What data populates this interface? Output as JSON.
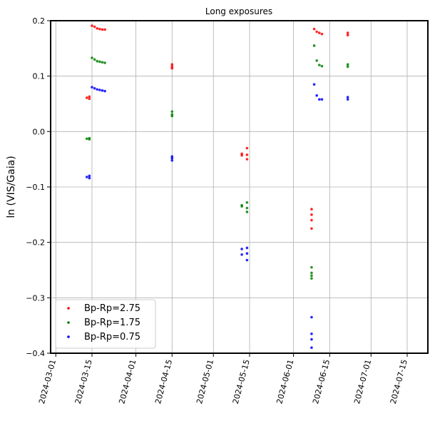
{
  "chart_data": {
    "type": "scatter",
    "title": "Long exposures",
    "xlabel": "",
    "ylabel": "ln (VIS/Gaia)",
    "x_ticks": [
      "2024-03-01",
      "2024-03-15",
      "2024-04-01",
      "2024-04-15",
      "2024-05-01",
      "2024-05-15",
      "2024-06-01",
      "2024-06-15",
      "2024-07-01",
      "2024-07-15"
    ],
    "xlim": [
      "2024-02-28",
      "2024-07-23"
    ],
    "y_ticks": [
      "0.2",
      "0.1",
      "0.0",
      "−0.1",
      "−0.2",
      "−0.3",
      "−0.4"
    ],
    "ylim": [
      -0.4,
      0.2
    ],
    "grid": true,
    "legend_position": "lower-left",
    "series": [
      {
        "name": "Bp-Rp=2.75",
        "color": "#ff0000",
        "points": [
          {
            "x": "2024-03-13",
            "y": 0.061
          },
          {
            "x": "2024-03-14",
            "y": 0.059
          },
          {
            "x": "2024-03-14",
            "y": 0.063
          },
          {
            "x": "2024-03-15",
            "y": 0.191
          },
          {
            "x": "2024-03-16",
            "y": 0.189
          },
          {
            "x": "2024-03-17",
            "y": 0.186
          },
          {
            "x": "2024-03-18",
            "y": 0.185
          },
          {
            "x": "2024-03-19",
            "y": 0.184
          },
          {
            "x": "2024-03-20",
            "y": 0.184
          },
          {
            "x": "2024-04-15",
            "y": 0.117
          },
          {
            "x": "2024-04-15",
            "y": 0.114
          },
          {
            "x": "2024-04-15",
            "y": 0.121
          },
          {
            "x": "2024-05-12",
            "y": -0.04
          },
          {
            "x": "2024-05-12",
            "y": -0.043
          },
          {
            "x": "2024-05-14",
            "y": -0.03
          },
          {
            "x": "2024-05-14",
            "y": -0.042
          },
          {
            "x": "2024-05-14",
            "y": -0.05
          },
          {
            "x": "2024-06-08",
            "y": -0.14
          },
          {
            "x": "2024-06-08",
            "y": -0.15
          },
          {
            "x": "2024-06-08",
            "y": -0.16
          },
          {
            "x": "2024-06-08",
            "y": -0.175
          },
          {
            "x": "2024-06-09",
            "y": 0.185
          },
          {
            "x": "2024-06-10",
            "y": 0.18
          },
          {
            "x": "2024-06-11",
            "y": 0.178
          },
          {
            "x": "2024-06-12",
            "y": 0.176
          },
          {
            "x": "2024-06-22",
            "y": 0.178
          },
          {
            "x": "2024-06-22",
            "y": 0.174
          }
        ]
      },
      {
        "name": "Bp-Rp=1.75",
        "color": "#008000",
        "points": [
          {
            "x": "2024-03-13",
            "y": -0.013
          },
          {
            "x": "2024-03-14",
            "y": -0.014
          },
          {
            "x": "2024-03-14",
            "y": -0.012
          },
          {
            "x": "2024-03-15",
            "y": 0.133
          },
          {
            "x": "2024-03-16",
            "y": 0.13
          },
          {
            "x": "2024-03-17",
            "y": 0.127
          },
          {
            "x": "2024-03-18",
            "y": 0.126
          },
          {
            "x": "2024-03-19",
            "y": 0.125
          },
          {
            "x": "2024-03-20",
            "y": 0.124
          },
          {
            "x": "2024-04-15",
            "y": 0.036
          },
          {
            "x": "2024-04-15",
            "y": 0.031
          },
          {
            "x": "2024-04-15",
            "y": 0.028
          },
          {
            "x": "2024-05-12",
            "y": -0.133
          },
          {
            "x": "2024-05-12",
            "y": -0.135
          },
          {
            "x": "2024-05-14",
            "y": -0.128
          },
          {
            "x": "2024-05-14",
            "y": -0.138
          },
          {
            "x": "2024-05-14",
            "y": -0.145
          },
          {
            "x": "2024-06-08",
            "y": -0.245
          },
          {
            "x": "2024-06-08",
            "y": -0.255
          },
          {
            "x": "2024-06-08",
            "y": -0.26
          },
          {
            "x": "2024-06-08",
            "y": -0.265
          },
          {
            "x": "2024-06-09",
            "y": 0.155
          },
          {
            "x": "2024-06-10",
            "y": 0.128
          },
          {
            "x": "2024-06-11",
            "y": 0.12
          },
          {
            "x": "2024-06-12",
            "y": 0.118
          },
          {
            "x": "2024-06-22",
            "y": 0.121
          },
          {
            "x": "2024-06-22",
            "y": 0.117
          }
        ]
      },
      {
        "name": "Bp-Rp=0.75",
        "color": "#0000ff",
        "points": [
          {
            "x": "2024-03-13",
            "y": -0.082
          },
          {
            "x": "2024-03-14",
            "y": -0.084
          },
          {
            "x": "2024-03-14",
            "y": -0.08
          },
          {
            "x": "2024-03-15",
            "y": 0.08
          },
          {
            "x": "2024-03-16",
            "y": 0.078
          },
          {
            "x": "2024-03-17",
            "y": 0.076
          },
          {
            "x": "2024-03-18",
            "y": 0.075
          },
          {
            "x": "2024-03-19",
            "y": 0.074
          },
          {
            "x": "2024-03-20",
            "y": 0.073
          },
          {
            "x": "2024-04-15",
            "y": -0.045
          },
          {
            "x": "2024-04-15",
            "y": -0.048
          },
          {
            "x": "2024-04-15",
            "y": -0.052
          },
          {
            "x": "2024-05-12",
            "y": -0.212
          },
          {
            "x": "2024-05-12",
            "y": -0.222
          },
          {
            "x": "2024-05-14",
            "y": -0.21
          },
          {
            "x": "2024-05-14",
            "y": -0.22
          },
          {
            "x": "2024-05-14",
            "y": -0.232
          },
          {
            "x": "2024-06-08",
            "y": -0.335
          },
          {
            "x": "2024-06-08",
            "y": -0.365
          },
          {
            "x": "2024-06-08",
            "y": -0.375
          },
          {
            "x": "2024-06-08",
            "y": -0.39
          },
          {
            "x": "2024-06-09",
            "y": 0.085
          },
          {
            "x": "2024-06-10",
            "y": 0.065
          },
          {
            "x": "2024-06-11",
            "y": 0.058
          },
          {
            "x": "2024-06-12",
            "y": 0.058
          },
          {
            "x": "2024-06-22",
            "y": 0.062
          },
          {
            "x": "2024-06-22",
            "y": 0.058
          }
        ]
      }
    ]
  }
}
